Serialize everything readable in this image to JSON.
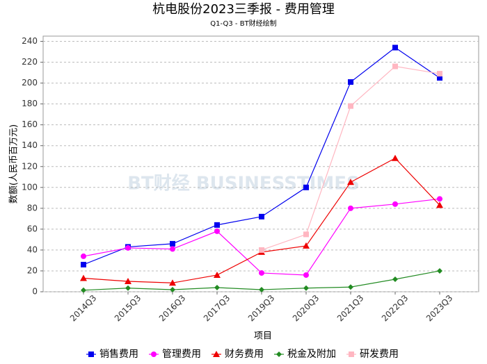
{
  "chart_data": {
    "type": "line",
    "title": "杭电股份2023三季报 - 费用管理",
    "subtitle": "Q1-Q3 - BT财经绘制",
    "watermark": "BT财经 BUSINESSTIMES",
    "x_label": "项目",
    "y_label": "数额(人民币百万元)",
    "categories": [
      "2014Q3",
      "2015Q3",
      "2016Q3",
      "2017Q3",
      "2019Q3",
      "2020Q3",
      "2021Q3",
      "2022Q3",
      "2023Q3"
    ],
    "ylim": [
      0,
      245
    ],
    "yticks": [
      0,
      20,
      40,
      60,
      80,
      100,
      120,
      140,
      160,
      180,
      200,
      220,
      240
    ],
    "grid": true,
    "legend": "bottom",
    "series": [
      {
        "name": "销售费用",
        "color": "#0000ee",
        "marker": "square",
        "values": [
          26,
          43,
          46,
          64,
          72,
          100,
          201,
          234,
          205
        ]
      },
      {
        "name": "管理费用",
        "color": "#ff00ff",
        "marker": "circle",
        "values": [
          34,
          42,
          41,
          58,
          18,
          16,
          80,
          84,
          89
        ]
      },
      {
        "name": "财务费用",
        "color": "#ee0000",
        "marker": "triangle",
        "values": [
          13,
          10,
          8.5,
          16,
          38,
          44,
          105,
          128,
          83
        ]
      },
      {
        "name": "税金及附加",
        "color": "#228b22",
        "marker": "diamond",
        "values": [
          1.5,
          3.5,
          2,
          4,
          2,
          3.5,
          4.5,
          12,
          20
        ]
      },
      {
        "name": "研发费用",
        "color": "#ffb6c1",
        "marker": "square",
        "values": [
          null,
          null,
          null,
          null,
          40,
          55,
          178,
          216,
          209
        ]
      }
    ]
  }
}
